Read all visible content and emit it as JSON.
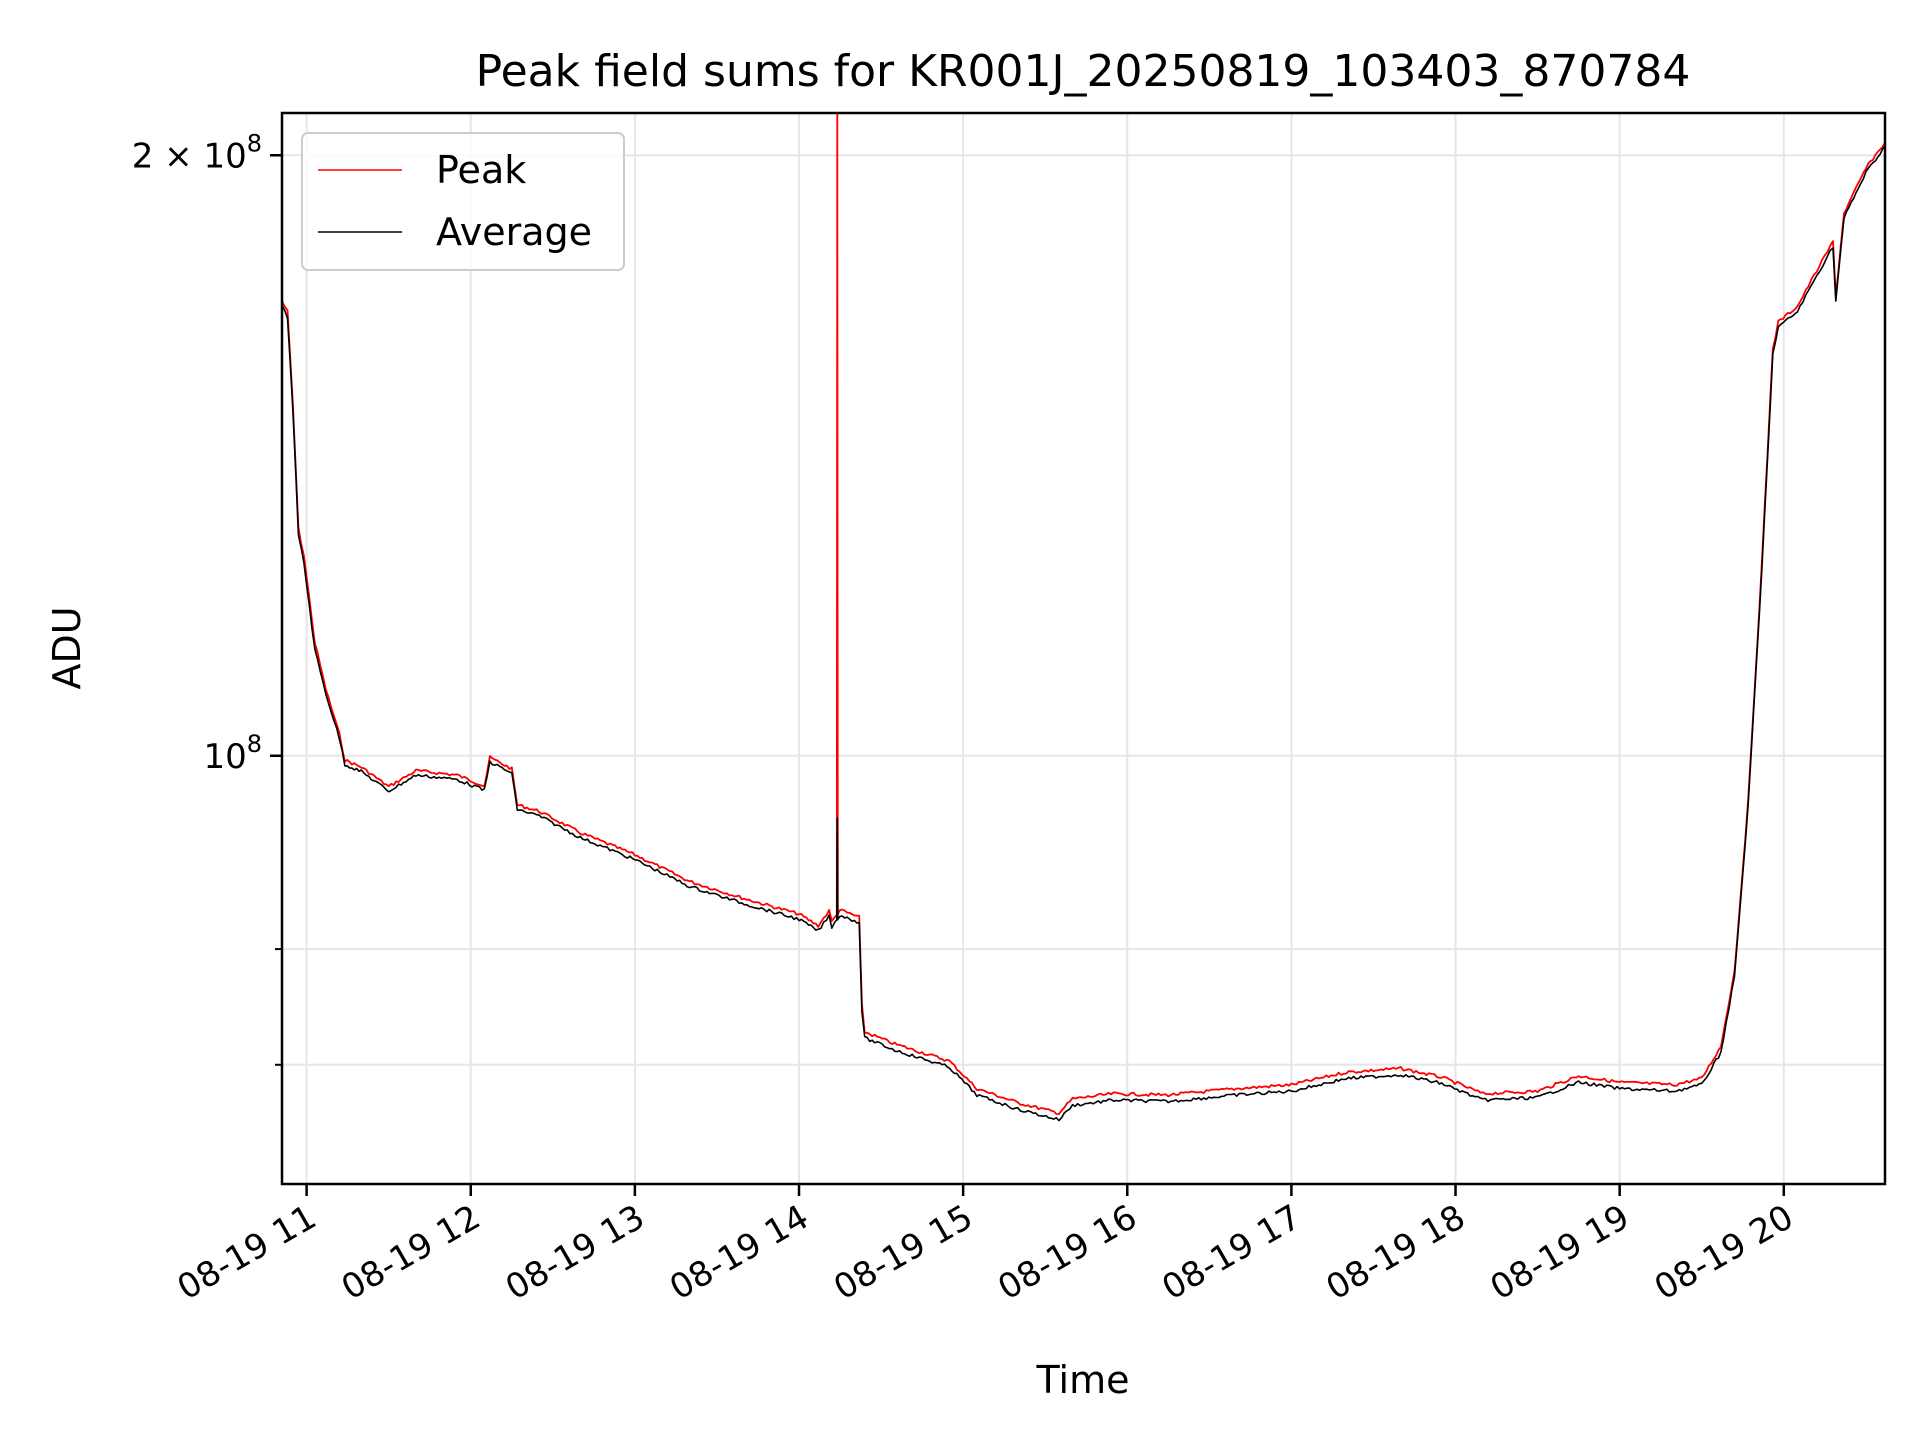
{
  "chart_data": {
    "type": "line",
    "title": "Peak field sums for KR001J_20250819_103403_870784",
    "xlabel": "Time",
    "ylabel": "ADU",
    "yscale": "log",
    "grid": true,
    "legend_position": "upper-left",
    "xlim": [
      "2025-08-19 10:51",
      "2025-08-19 20:37"
    ],
    "ylim": [
      61000000,
      210000000
    ],
    "x_ticks": [
      "08-19 11",
      "08-19 12",
      "08-19 13",
      "08-19 14",
      "08-19 15",
      "08-19 16",
      "08-19 17",
      "08-19 18",
      "08-19 19",
      "08-19 20"
    ],
    "y_tick_labels": [
      {
        "value": 200000000,
        "base": "2 × 10",
        "exp": "8"
      },
      {
        "value": 100000000,
        "base": "10",
        "exp": "8"
      }
    ],
    "y_minor_ticks": [
      70000000,
      80000000
    ],
    "series": [
      {
        "name": "Peak",
        "color": "#ff0000",
        "points": [
          [
            "10:51",
            169000000
          ],
          [
            "10:53",
            167000000
          ],
          [
            "10:55",
            150000000
          ],
          [
            "10:57",
            130000000
          ],
          [
            "10:59",
            126000000
          ],
          [
            "11:03",
            114000000
          ],
          [
            "11:07",
            108000000
          ],
          [
            "11:12",
            102500000
          ],
          [
            "11:14",
            99500000
          ],
          [
            "11:20",
            98700000
          ],
          [
            "11:30",
            96500000
          ],
          [
            "11:40",
            98300000
          ],
          [
            "11:55",
            97800000
          ],
          [
            "12:05",
            96600000
          ],
          [
            "12:07",
            99800000
          ],
          [
            "12:15",
            98500000
          ],
          [
            "12:17",
            94500000
          ],
          [
            "12:25",
            93800000
          ],
          [
            "12:40",
            91500000
          ],
          [
            "13:00",
            89200000
          ],
          [
            "13:20",
            86500000
          ],
          [
            "13:40",
            84800000
          ],
          [
            "14:00",
            83300000
          ],
          [
            "14:07",
            82200000
          ],
          [
            "14:11",
            83600000
          ],
          [
            "14:12",
            82600000
          ],
          [
            "14:15",
            83700000
          ],
          [
            "14:22",
            83000000
          ],
          [
            "14:23",
            75000000
          ],
          [
            "14:24",
            72700000
          ],
          [
            "14:35",
            71700000
          ],
          [
            "14:55",
            70300000
          ],
          [
            "15:05",
            68100000
          ],
          [
            "15:20",
            67000000
          ],
          [
            "15:35",
            66200000
          ],
          [
            "15:40",
            67300000
          ],
          [
            "15:55",
            67700000
          ],
          [
            "16:15",
            67600000
          ],
          [
            "16:40",
            68100000
          ],
          [
            "17:00",
            68400000
          ],
          [
            "17:20",
            69400000
          ],
          [
            "17:40",
            69700000
          ],
          [
            "17:55",
            69000000
          ],
          [
            "18:10",
            67700000
          ],
          [
            "18:30",
            67900000
          ],
          [
            "18:45",
            69100000
          ],
          [
            "19:00",
            68600000
          ],
          [
            "19:20",
            68400000
          ],
          [
            "19:30",
            68900000
          ],
          [
            "19:37",
            71500000
          ],
          [
            "19:42",
            78000000
          ],
          [
            "19:47",
            95000000
          ],
          [
            "19:52",
            125000000
          ],
          [
            "19:56",
            160000000
          ],
          [
            "19:58",
            165000000
          ],
          [
            "20:05",
            168000000
          ],
          [
            "20:10",
            173000000
          ],
          [
            "20:15",
            178000000
          ],
          [
            "20:18",
            181000000
          ],
          [
            "20:19",
            170000000
          ],
          [
            "20:22",
            187000000
          ],
          [
            "20:30",
            197000000
          ],
          [
            "20:37",
            203000000
          ]
        ],
        "spikes": [
          {
            "time": "14:14",
            "value": 215000000
          }
        ]
      },
      {
        "name": "Average",
        "color": "#000000",
        "points": [
          [
            "10:51",
            168000000
          ],
          [
            "10:53",
            166000000
          ],
          [
            "10:55",
            149000000
          ],
          [
            "10:57",
            129000000
          ],
          [
            "10:59",
            125000000
          ],
          [
            "11:03",
            113000000
          ],
          [
            "11:07",
            107500000
          ],
          [
            "11:12",
            102000000
          ],
          [
            "11:14",
            99000000
          ],
          [
            "11:20",
            98200000
          ],
          [
            "11:30",
            96000000
          ],
          [
            "11:40",
            97800000
          ],
          [
            "11:55",
            97300000
          ],
          [
            "12:05",
            96100000
          ],
          [
            "12:07",
            99300000
          ],
          [
            "12:15",
            98000000
          ],
          [
            "12:17",
            94000000
          ],
          [
            "12:25",
            93300000
          ],
          [
            "12:40",
            91000000
          ],
          [
            "13:00",
            88700000
          ],
          [
            "13:20",
            86000000
          ],
          [
            "13:40",
            84300000
          ],
          [
            "14:00",
            82800000
          ],
          [
            "14:07",
            81700000
          ],
          [
            "14:11",
            83100000
          ],
          [
            "14:12",
            82100000
          ],
          [
            "14:15",
            83200000
          ],
          [
            "14:22",
            82500000
          ],
          [
            "14:23",
            74500000
          ],
          [
            "14:24",
            72200000
          ],
          [
            "14:35",
            71200000
          ],
          [
            "14:55",
            69800000
          ],
          [
            "15:05",
            67600000
          ],
          [
            "15:20",
            66500000
          ],
          [
            "15:35",
            65700000
          ],
          [
            "15:40",
            66800000
          ],
          [
            "15:55",
            67200000
          ],
          [
            "16:15",
            67100000
          ],
          [
            "16:40",
            67600000
          ],
          [
            "17:00",
            67900000
          ],
          [
            "17:20",
            68900000
          ],
          [
            "17:40",
            69200000
          ],
          [
            "17:55",
            68500000
          ],
          [
            "18:10",
            67200000
          ],
          [
            "18:30",
            67400000
          ],
          [
            "18:45",
            68600000
          ],
          [
            "19:00",
            68100000
          ],
          [
            "19:20",
            67900000
          ],
          [
            "19:30",
            68400000
          ],
          [
            "19:37",
            71000000
          ],
          [
            "19:42",
            77500000
          ],
          [
            "19:47",
            94500000
          ],
          [
            "19:52",
            124000000
          ],
          [
            "19:56",
            159000000
          ],
          [
            "19:58",
            164000000
          ],
          [
            "20:05",
            167000000
          ],
          [
            "20:10",
            172000000
          ],
          [
            "20:15",
            177000000
          ],
          [
            "20:18",
            180000000
          ],
          [
            "20:19",
            169000000
          ],
          [
            "20:22",
            186000000
          ],
          [
            "20:30",
            196000000
          ],
          [
            "20:37",
            202000000
          ]
        ],
        "spikes": [
          {
            "time": "14:14",
            "value": 93000000
          }
        ]
      }
    ]
  }
}
